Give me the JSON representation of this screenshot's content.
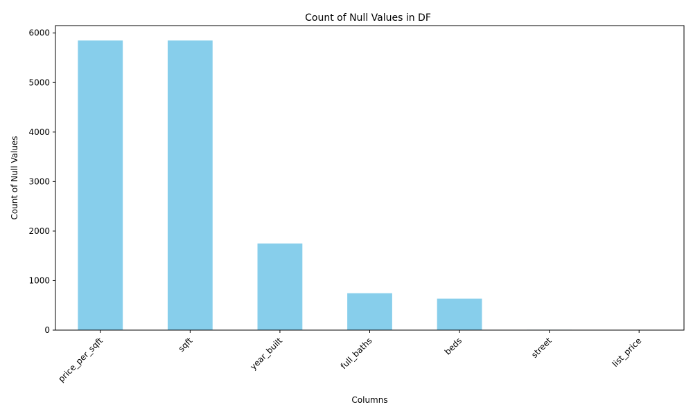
{
  "chart_data": {
    "type": "bar",
    "title": "Count of Null Values in DF",
    "xlabel": "Columns",
    "ylabel": "Count of Null Values",
    "categories": [
      "price_per_sqft",
      "sqft",
      "year_built",
      "full_baths",
      "beds",
      "street",
      "list_price"
    ],
    "values": [
      5850,
      5850,
      1750,
      745,
      635,
      8,
      2
    ],
    "ylim": [
      0,
      6150
    ],
    "yticks": [
      0,
      1000,
      2000,
      3000,
      4000,
      5000,
      6000
    ],
    "ytick_labels": [
      "0",
      "1000",
      "2000",
      "3000",
      "4000",
      "5000",
      "6000"
    ],
    "bar_color": "#87ceeb",
    "grid": false,
    "legend": false,
    "xtick_rotation": "45 degrees"
  }
}
